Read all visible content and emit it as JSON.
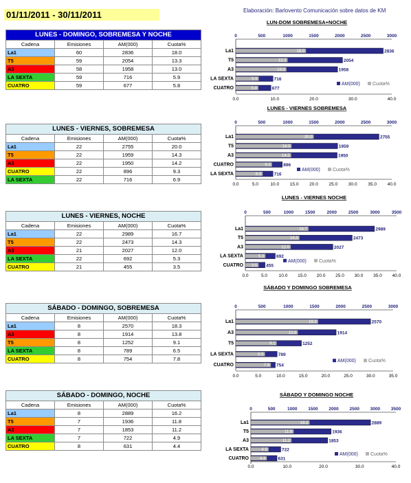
{
  "header": {
    "date_range": "01/11/2011 - 30/11/2011",
    "credit": "Elaboración: Barlovento Comunicación sobre datos de KM"
  },
  "colors": {
    "La1": "#99ccff",
    "T5": "#ff9900",
    "A3": "#ff0000",
    "LA SEXTA": "#33cc33",
    "CUATRO": "#ffff00",
    "am_bar": "#2b2b8c",
    "cuota_bar": "#b3b3b3"
  },
  "table_headers": [
    "Cadena",
    "Emisiones",
    "AM(000)",
    "Cuota%"
  ],
  "chart_data": [
    {
      "type": "bar",
      "title": "LUN-DOM SOBREMESA+NOCHE",
      "table_title": "LUNES - DOMINGO, SOBREMESA Y NOCHE",
      "table_rows": [
        {
          "cadena": "La1",
          "emisiones": "60",
          "am": "2836",
          "cuota": "18.0"
        },
        {
          "cadena": "T5",
          "emisiones": "59",
          "am": "2054",
          "cuota": "13.3"
        },
        {
          "cadena": "A3",
          "emisiones": "58",
          "am": "1958",
          "cuota": "13.0"
        },
        {
          "cadena": "LA SEXTA",
          "emisiones": "59",
          "am": "716",
          "cuota": "5.9"
        },
        {
          "cadena": "CUATRO",
          "emisiones": "59",
          "am": "677",
          "cuota": "5.8"
        }
      ],
      "categories": [
        "La1",
        "T5",
        "A3",
        "LA SEXTA",
        "CUATRO"
      ],
      "series": [
        {
          "name": "AM(000)",
          "values": [
            2836,
            2054,
            1958,
            716,
            677
          ]
        },
        {
          "name": "Cuota%",
          "values": [
            18.0,
            13.3,
            13.0,
            5.9,
            5.8
          ]
        }
      ],
      "top_ticks": [
        "0",
        "500",
        "1000",
        "1500",
        "2000",
        "2500",
        "3000"
      ],
      "top_max": 3000,
      "bottom_ticks": [
        "0.0",
        "10.0",
        "20.0",
        "30.0",
        "40.0"
      ],
      "bottom_max": 40
    },
    {
      "type": "bar",
      "title": "LUNES - VIERNES SOBREMESA",
      "table_title": "LUNES - VIERNES, SOBREMESA",
      "table_rows": [
        {
          "cadena": "La1",
          "emisiones": "22",
          "am": "2755",
          "cuota": "20.0"
        },
        {
          "cadena": "T5",
          "emisiones": "22",
          "am": "1959",
          "cuota": "14.3"
        },
        {
          "cadena": "A3",
          "emisiones": "22",
          "am": "1950",
          "cuota": "14.2"
        },
        {
          "cadena": "CUATRO",
          "emisiones": "22",
          "am": "896",
          "cuota": "9.3"
        },
        {
          "cadena": "LA SEXTA",
          "emisiones": "22",
          "am": "716",
          "cuota": "6.9"
        }
      ],
      "categories": [
        "La1",
        "T5",
        "A3",
        "CUATRO",
        "LA SEXTA"
      ],
      "series": [
        {
          "name": "AM(000)",
          "values": [
            2755,
            1959,
            1950,
            896,
            716
          ]
        },
        {
          "name": "Cuota%",
          "values": [
            20.0,
            14.3,
            14.2,
            9.3,
            6.9
          ]
        }
      ],
      "top_ticks": [
        "0",
        "500",
        "1000",
        "1500",
        "2000",
        "2500",
        "3000"
      ],
      "top_max": 3000,
      "bottom_ticks": [
        "0.0",
        "5.0",
        "10.0",
        "15.0",
        "20.0",
        "25.0",
        "30.0",
        "35.0",
        "40.0"
      ],
      "bottom_max": 40
    },
    {
      "type": "bar",
      "title": "LUNES - VIERNES NOCHE",
      "table_title": "LUNES - VIERNES, NOCHE",
      "table_rows": [
        {
          "cadena": "La1",
          "emisiones": "22",
          "am": "2989",
          "cuota": "16.7"
        },
        {
          "cadena": "T5",
          "emisiones": "22",
          "am": "2473",
          "cuota": "14.3"
        },
        {
          "cadena": "A3",
          "emisiones": "21",
          "am": "2027",
          "cuota": "12.0"
        },
        {
          "cadena": "LA SEXTA",
          "emisiones": "22",
          "am": "692",
          "cuota": "5.3"
        },
        {
          "cadena": "CUATRO",
          "emisiones": "21",
          "am": "455",
          "cuota": "3.5"
        }
      ],
      "categories": [
        "La1",
        "T5",
        "A3",
        "LA SEXTA",
        "CUATRO"
      ],
      "series": [
        {
          "name": "AM(000)",
          "values": [
            2989,
            2473,
            2027,
            692,
            455
          ]
        },
        {
          "name": "Cuota%",
          "values": [
            16.7,
            14.3,
            12.0,
            5.3,
            3.5
          ]
        }
      ],
      "top_ticks": [
        "0",
        "500",
        "1000",
        "1500",
        "2000",
        "2500",
        "3000",
        "3500"
      ],
      "top_max": 3500,
      "bottom_ticks": [
        "0.0",
        "5.0",
        "10.0",
        "15.0",
        "20.0",
        "25.0",
        "30.0",
        "35.0",
        "40.0"
      ],
      "bottom_max": 40
    },
    {
      "type": "bar",
      "title": "SÁBADO Y DOMINGO SOBREMESA",
      "table_title": "SÁBADO - DOMINGO, SOBREMESA",
      "table_rows": [
        {
          "cadena": "La1",
          "emisiones": "8",
          "am": "2570",
          "cuota": "18.3"
        },
        {
          "cadena": "A3",
          "emisiones": "8",
          "am": "1914",
          "cuota": "13.8"
        },
        {
          "cadena": "T5",
          "emisiones": "8",
          "am": "1252",
          "cuota": "9.1"
        },
        {
          "cadena": "LA SEXTA",
          "emisiones": "8",
          "am": "789",
          "cuota": "6.5"
        },
        {
          "cadena": "CUATRO",
          "emisiones": "8",
          "am": "754",
          "cuota": "7.8"
        }
      ],
      "categories": [
        "La1",
        "A3",
        "T5",
        "LA SEXTA",
        "CUATRO"
      ],
      "series": [
        {
          "name": "AM(000)",
          "values": [
            2570,
            1914,
            1252,
            789,
            754
          ]
        },
        {
          "name": "Cuota%",
          "values": [
            18.3,
            13.8,
            9.1,
            6.5,
            7.8
          ]
        }
      ],
      "top_ticks": [
        "0",
        "500",
        "1000",
        "1500",
        "2000",
        "2500",
        "3000"
      ],
      "top_max": 3000,
      "bottom_ticks": [
        "0.0",
        "5.0",
        "10.0",
        "15.0",
        "20.0",
        "25.0",
        "30.0",
        "35.0"
      ],
      "bottom_max": 35
    },
    {
      "type": "bar",
      "title": "SÁBADO Y DOMINGO NOCHE",
      "table_title": "SÁBADO - DOMINGO, NOCHE",
      "table_rows": [
        {
          "cadena": "La1",
          "emisiones": "8",
          "am": "2889",
          "cuota": "16.2"
        },
        {
          "cadena": "T5",
          "emisiones": "7",
          "am": "1936",
          "cuota": "11.8"
        },
        {
          "cadena": "A3",
          "emisiones": "7",
          "am": "1853",
          "cuota": "11.2"
        },
        {
          "cadena": "LA SEXTA",
          "emisiones": "7",
          "am": "722",
          "cuota": "4.9"
        },
        {
          "cadena": "CUATRO",
          "emisiones": "8",
          "am": "631",
          "cuota": "4.4"
        }
      ],
      "categories": [
        "La1",
        "T5",
        "A3",
        "LA SEXTA",
        "CUATRO"
      ],
      "series": [
        {
          "name": "AM(000)",
          "values": [
            2889,
            1936,
            1853,
            722,
            631
          ]
        },
        {
          "name": "Cuota%",
          "values": [
            16.2,
            11.8,
            11.2,
            4.9,
            4.4
          ]
        }
      ],
      "top_ticks": [
        "0",
        "500",
        "1000",
        "1500",
        "2000",
        "2500",
        "3000",
        "3500"
      ],
      "top_max": 3500,
      "bottom_ticks": [
        "0.0",
        "10.0",
        "20.0",
        "30.0",
        "40.0"
      ],
      "bottom_max": 40
    }
  ]
}
